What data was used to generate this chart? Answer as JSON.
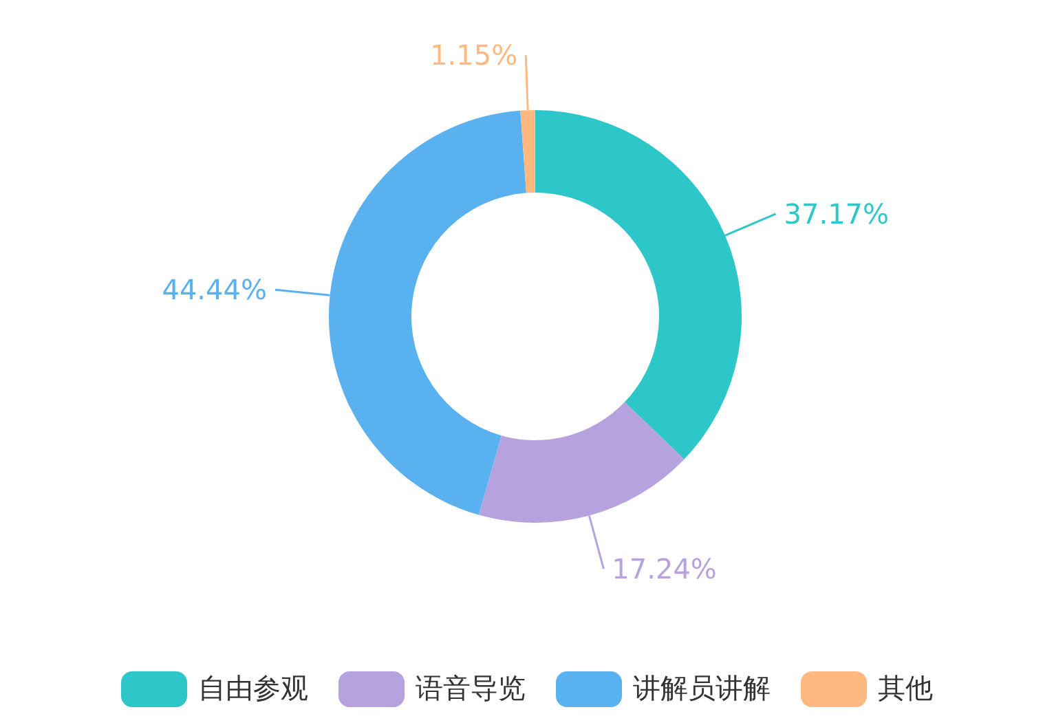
{
  "chart_data": {
    "type": "donut",
    "categories": [
      "自由参观",
      "语音导览",
      "讲解员讲解",
      "其他"
    ],
    "values": [
      37.17,
      17.24,
      44.44,
      1.15
    ],
    "colors": [
      "#2ec7c9",
      "#b6a2de",
      "#5ab1ef",
      "#ffb980"
    ],
    "value_labels": [
      "37.17%",
      "17.24%",
      "44.44%",
      "1.15%"
    ],
    "legend": "bottom"
  }
}
